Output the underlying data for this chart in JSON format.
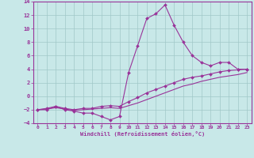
{
  "xlabel": "Windchill (Refroidissement éolien,°C)",
  "x": [
    0,
    1,
    2,
    3,
    4,
    5,
    6,
    7,
    8,
    9,
    10,
    11,
    12,
    13,
    14,
    15,
    16,
    17,
    18,
    19,
    20,
    21,
    22,
    23
  ],
  "line_main": [
    -2,
    -2,
    -1.5,
    -2,
    -2.2,
    -2.5,
    -2.5,
    -3,
    -3.5,
    -3,
    3.5,
    7.5,
    11.5,
    12.2,
    13.5,
    10.5,
    8,
    6,
    5,
    4.5,
    5,
    5,
    4,
    4
  ],
  "line_mid": [
    -2,
    -1.8,
    -1.5,
    -1.8,
    -2,
    -1.8,
    -1.8,
    -1.5,
    -1.4,
    -1.5,
    -0.8,
    -0.2,
    0.5,
    1.0,
    1.5,
    2.0,
    2.5,
    2.8,
    3.0,
    3.3,
    3.6,
    3.8,
    3.9,
    4.0
  ],
  "line_low": [
    -2,
    -1.9,
    -1.7,
    -1.9,
    -2.1,
    -2.0,
    -1.9,
    -1.8,
    -1.7,
    -1.8,
    -1.4,
    -1.0,
    -0.5,
    0.0,
    0.5,
    1.0,
    1.5,
    1.8,
    2.2,
    2.5,
    2.8,
    3.0,
    3.2,
    3.5
  ],
  "color": "#993399",
  "bg_color": "#c8e8e8",
  "grid_color": "#a0c8c8",
  "ylim": [
    -4,
    14
  ],
  "yticks": [
    -4,
    -2,
    0,
    2,
    4,
    6,
    8,
    10,
    12,
    14
  ],
  "xticks": [
    0,
    1,
    2,
    3,
    4,
    5,
    6,
    7,
    8,
    9,
    10,
    11,
    12,
    13,
    14,
    15,
    16,
    17,
    18,
    19,
    20,
    21,
    22,
    23
  ]
}
